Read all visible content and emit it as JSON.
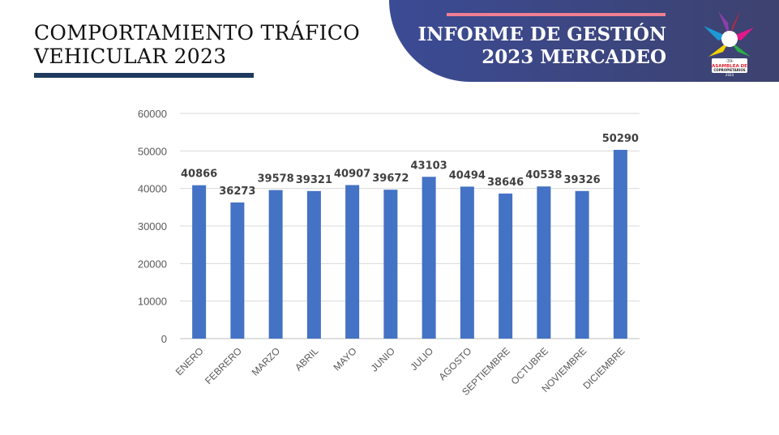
{
  "header": {
    "title_line1": "COMPORTAMIENTO TRÁFICO",
    "title_line2": "VEHICULAR 2023",
    "banner_line1": "INFORME DE GESTIÓN",
    "banner_line2": "2023 MERCADEO",
    "logo_text": "-39- ASAMBLEA DE COPROPIETARIOS 2024"
  },
  "colors": {
    "bar": "#4472c4",
    "banner": "#3b4b94",
    "accent": "#f07f92",
    "underline": "#1f3a5f"
  },
  "chart_data": {
    "type": "bar",
    "categories": [
      "ENERO",
      "FEBRERO",
      "MARZO",
      "ABRIL",
      "MAYO",
      "JUNIO",
      "JULIO",
      "AGOSTO",
      "SEPTIEMBRE",
      "OCTUBRE",
      "NOVIEMBRE",
      "DICIEMBRE"
    ],
    "values": [
      40866,
      36273,
      39578,
      39321,
      40907,
      39672,
      43103,
      40494,
      38646,
      40538,
      39326,
      50290
    ],
    "ylim": [
      0,
      60000
    ],
    "yticks": [
      0,
      10000,
      20000,
      30000,
      40000,
      50000,
      60000
    ],
    "grid": true,
    "data_labels": true
  }
}
